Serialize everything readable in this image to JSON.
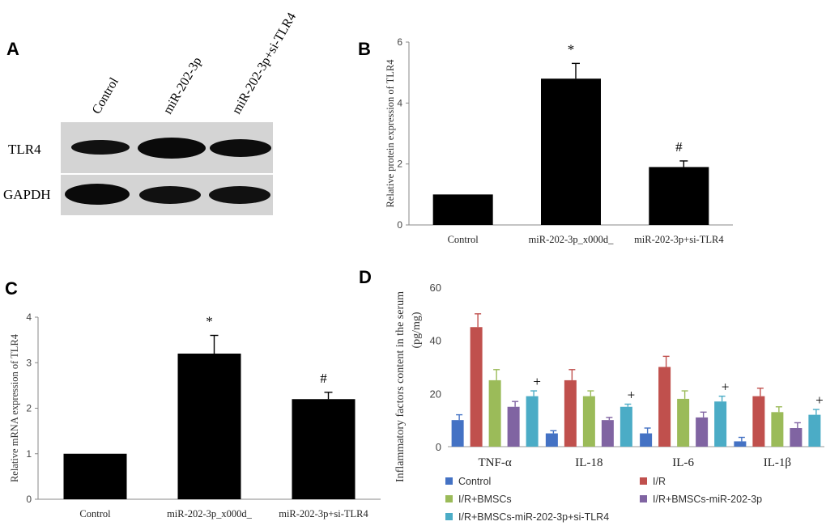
{
  "panels": {
    "a": "A",
    "b": "B",
    "c": "C",
    "d": "D"
  },
  "blot": {
    "lanes": [
      "Control",
      "miR-202-3p",
      "miR-202-3p+si-TLR4"
    ],
    "rows": [
      "TLR4",
      "GAPDH"
    ]
  },
  "chart_data": [
    {
      "id": "B",
      "type": "bar",
      "title": "",
      "xlabel": "",
      "ylabel": "Relative protein expression of TLR4",
      "categories": [
        "Control",
        "miR-202-3p_x000d_",
        "miR-202-3p+si-TLR4"
      ],
      "values": [
        1.0,
        4.8,
        1.9
      ],
      "errors": [
        0.0,
        0.5,
        0.2
      ],
      "annotations": [
        "",
        "*",
        "#"
      ],
      "ylim": [
        0,
        6
      ],
      "yticks": [
        0,
        2,
        4,
        6
      ],
      "color": "#000000"
    },
    {
      "id": "C",
      "type": "bar",
      "title": "",
      "xlabel": "",
      "ylabel": "Relative mRNA expression of TLR4",
      "categories": [
        "Control",
        "miR-202-3p_x000d_",
        "miR-202-3p+si-TLR4"
      ],
      "values": [
        1.0,
        3.2,
        2.2
      ],
      "errors": [
        0.0,
        0.4,
        0.15
      ],
      "annotations": [
        "",
        "*",
        "#"
      ],
      "ylim": [
        0,
        4
      ],
      "yticks": [
        0,
        1,
        2,
        3,
        4
      ],
      "color": "#000000"
    },
    {
      "id": "D",
      "type": "bar",
      "title": "",
      "xlabel": "",
      "ylabel": "Inflammatory factors content in the serum",
      "ylabel2": "(pg/mg)",
      "categories": [
        "TNF-α",
        "IL-18",
        "IL-6",
        "IL-1β"
      ],
      "ylim": [
        0,
        60
      ],
      "yticks": [
        0,
        20,
        40,
        60
      ],
      "legend_position": "bottom",
      "annotation": "+",
      "series": [
        {
          "name": "Control",
          "color": "#4472C4",
          "values": [
            10,
            5,
            5,
            2
          ],
          "errors": [
            2,
            1,
            2,
            1.5
          ]
        },
        {
          "name": "I/R",
          "color": "#C0504D",
          "values": [
            45,
            25,
            30,
            19
          ],
          "errors": [
            5,
            4,
            4,
            3
          ]
        },
        {
          "name": "I/R+BMSCs",
          "color": "#9BBB59",
          "values": [
            25,
            19,
            18,
            13
          ],
          "errors": [
            4,
            2,
            3,
            2
          ]
        },
        {
          "name": "I/R+BMSCs-miR-202-3p",
          "color": "#8064A2",
          "values": [
            15,
            10,
            11,
            7
          ],
          "errors": [
            2,
            1,
            2,
            2
          ]
        },
        {
          "name": "I/R+BMSCs-miR-202-3p+si-TLR4",
          "color": "#4BACC6",
          "values": [
            19,
            15,
            17,
            12
          ],
          "errors": [
            2,
            1,
            2,
            2
          ]
        }
      ]
    }
  ]
}
